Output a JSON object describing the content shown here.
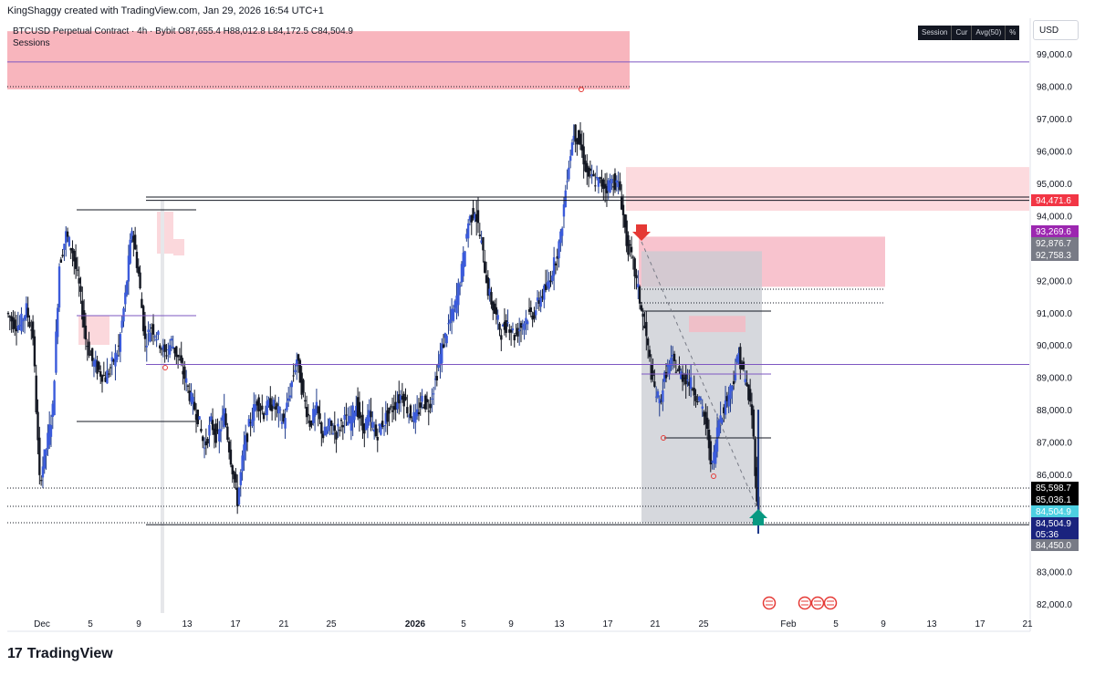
{
  "header": {
    "author_line": "KingShaggy created with TradingView.com, Jan 29, 2026 16:54 UTC+1"
  },
  "pane": {
    "symbol_line": "BTCUSD Perpetual Contract · 4h · Bybit  O87,655.4  H88,012.8  L84,172.5  C84,504.9",
    "sessions_label": "Sessions"
  },
  "legend_box": [
    "Session",
    "Cur",
    "Avg(50)",
    "%"
  ],
  "currency": "USD",
  "footer": {
    "brand": "TradingView",
    "logo_mark": "17"
  },
  "chart_data": {
    "type": "candlestick",
    "title": "BTCUSD Perpetual Contract · 4h · Bybit",
    "ohlc_last": {
      "open": 87655.4,
      "high": 88012.8,
      "low": 84172.5,
      "close": 84504.9
    },
    "ylim": [
      81700,
      99900
    ],
    "y_ticks": [
      99000,
      98000,
      97000,
      96000,
      95000,
      94000,
      92000,
      91000,
      90000,
      89000,
      88000,
      87000,
      86000,
      83000,
      82000
    ],
    "x_labels": [
      "Dec",
      "5",
      "9",
      "13",
      "17",
      "21",
      "25",
      "2026",
      "5",
      "9",
      "13",
      "17",
      "21",
      "25",
      "Feb",
      "5",
      "9",
      "13",
      "17",
      "21"
    ],
    "price_series_days": [
      1,
      2,
      3,
      4,
      5,
      6,
      7,
      8,
      9,
      10,
      11,
      12,
      13,
      14,
      15,
      16,
      17,
      18,
      19,
      20,
      21,
      22,
      23,
      24,
      25,
      26,
      27,
      28,
      29,
      30,
      31,
      32,
      33,
      34,
      35,
      36,
      37,
      38,
      39,
      40,
      41,
      42,
      43,
      44,
      45,
      46,
      47,
      48,
      49,
      50,
      51,
      52,
      53,
      54,
      55,
      56,
      57,
      58,
      59,
      60
    ],
    "close_path": [
      {
        "d": 0.0,
        "v": 91000
      },
      {
        "d": 0.5,
        "v": 90700
      },
      {
        "d": 1.0,
        "v": 90600
      },
      {
        "d": 1.5,
        "v": 91100
      },
      {
        "d": 2.0,
        "v": 90300
      },
      {
        "d": 2.5,
        "v": 85800
      },
      {
        "d": 3.0,
        "v": 86800
      },
      {
        "d": 3.5,
        "v": 88000
      },
      {
        "d": 4.0,
        "v": 92500
      },
      {
        "d": 4.5,
        "v": 93400
      },
      {
        "d": 5.0,
        "v": 92900
      },
      {
        "d": 5.5,
        "v": 91800
      },
      {
        "d": 6.0,
        "v": 90200
      },
      {
        "d": 6.5,
        "v": 89500
      },
      {
        "d": 7.0,
        "v": 89200
      },
      {
        "d": 7.5,
        "v": 89000
      },
      {
        "d": 8.0,
        "v": 89400
      },
      {
        "d": 8.5,
        "v": 89900
      },
      {
        "d": 9.0,
        "v": 91500
      },
      {
        "d": 9.5,
        "v": 93600
      },
      {
        "d": 10.0,
        "v": 92200
      },
      {
        "d": 10.5,
        "v": 90100
      },
      {
        "d": 11.0,
        "v": 90600
      },
      {
        "d": 11.5,
        "v": 90200
      },
      {
        "d": 12.0,
        "v": 89700
      },
      {
        "d": 12.5,
        "v": 90100
      },
      {
        "d": 13.0,
        "v": 89600
      },
      {
        "d": 13.5,
        "v": 89000
      },
      {
        "d": 14.0,
        "v": 88300
      },
      {
        "d": 14.5,
        "v": 87800
      },
      {
        "d": 15.0,
        "v": 86800
      },
      {
        "d": 15.5,
        "v": 87600
      },
      {
        "d": 16.0,
        "v": 87100
      },
      {
        "d": 16.5,
        "v": 87900
      },
      {
        "d": 17.0,
        "v": 86500
      },
      {
        "d": 17.5,
        "v": 85200
      },
      {
        "d": 18.0,
        "v": 86800
      },
      {
        "d": 18.5,
        "v": 87700
      },
      {
        "d": 19.0,
        "v": 88300
      },
      {
        "d": 19.5,
        "v": 87900
      },
      {
        "d": 20.0,
        "v": 88200
      },
      {
        "d": 20.5,
        "v": 88000
      },
      {
        "d": 21.0,
        "v": 87600
      },
      {
        "d": 21.5,
        "v": 88600
      },
      {
        "d": 22.0,
        "v": 89600
      },
      {
        "d": 22.5,
        "v": 88400
      },
      {
        "d": 23.0,
        "v": 87600
      },
      {
        "d": 23.5,
        "v": 88000
      },
      {
        "d": 24.0,
        "v": 87200
      },
      {
        "d": 24.5,
        "v": 87500
      },
      {
        "d": 25.0,
        "v": 87300
      },
      {
        "d": 25.5,
        "v": 87700
      },
      {
        "d": 26.0,
        "v": 87600
      },
      {
        "d": 26.5,
        "v": 88200
      },
      {
        "d": 27.0,
        "v": 87400
      },
      {
        "d": 27.5,
        "v": 87800
      },
      {
        "d": 28.0,
        "v": 87200
      },
      {
        "d": 28.5,
        "v": 87600
      },
      {
        "d": 29.0,
        "v": 87900
      },
      {
        "d": 29.5,
        "v": 88200
      },
      {
        "d": 30.0,
        "v": 88500
      },
      {
        "d": 30.5,
        "v": 87900
      },
      {
        "d": 31.0,
        "v": 87700
      },
      {
        "d": 31.5,
        "v": 88300
      },
      {
        "d": 32.0,
        "v": 88100
      },
      {
        "d": 32.5,
        "v": 88900
      },
      {
        "d": 33.0,
        "v": 89900
      },
      {
        "d": 33.5,
        "v": 90600
      },
      {
        "d": 34.0,
        "v": 91200
      },
      {
        "d": 34.5,
        "v": 92300
      },
      {
        "d": 35.0,
        "v": 93800
      },
      {
        "d": 35.5,
        "v": 94200
      },
      {
        "d": 36.0,
        "v": 93100
      },
      {
        "d": 36.5,
        "v": 91700
      },
      {
        "d": 37.0,
        "v": 91000
      },
      {
        "d": 37.5,
        "v": 90400
      },
      {
        "d": 38.0,
        "v": 90700
      },
      {
        "d": 38.5,
        "v": 90300
      },
      {
        "d": 39.0,
        "v": 90600
      },
      {
        "d": 39.5,
        "v": 90900
      },
      {
        "d": 40.0,
        "v": 91000
      },
      {
        "d": 40.5,
        "v": 91500
      },
      {
        "d": 41.0,
        "v": 91800
      },
      {
        "d": 41.5,
        "v": 92500
      },
      {
        "d": 42.0,
        "v": 93300
      },
      {
        "d": 42.5,
        "v": 95300
      },
      {
        "d": 43.0,
        "v": 96600
      },
      {
        "d": 43.5,
        "v": 96200
      },
      {
        "d": 44.0,
        "v": 95300
      },
      {
        "d": 44.5,
        "v": 95100
      },
      {
        "d": 45.0,
        "v": 95000
      },
      {
        "d": 45.5,
        "v": 94900
      },
      {
        "d": 46.0,
        "v": 95100
      },
      {
        "d": 46.5,
        "v": 94800
      },
      {
        "d": 47.0,
        "v": 93200
      },
      {
        "d": 47.5,
        "v": 92500
      },
      {
        "d": 48.0,
        "v": 91400
      },
      {
        "d": 48.5,
        "v": 90200
      },
      {
        "d": 49.0,
        "v": 88800
      },
      {
        "d": 49.5,
        "v": 88200
      },
      {
        "d": 50.0,
        "v": 89200
      },
      {
        "d": 50.5,
        "v": 89500
      },
      {
        "d": 51.0,
        "v": 89100
      },
      {
        "d": 51.5,
        "v": 89000
      },
      {
        "d": 52.0,
        "v": 88700
      },
      {
        "d": 52.5,
        "v": 88300
      },
      {
        "d": 53.0,
        "v": 87600
      },
      {
        "d": 53.5,
        "v": 86200
      },
      {
        "d": 54.0,
        "v": 87700
      },
      {
        "d": 54.5,
        "v": 88200
      },
      {
        "d": 55.0,
        "v": 88800
      },
      {
        "d": 55.5,
        "v": 89700
      },
      {
        "d": 56.0,
        "v": 88900
      },
      {
        "d": 56.5,
        "v": 87900
      },
      {
        "d": 57.0,
        "v": 84505
      }
    ],
    "horizontal_lines": [
      {
        "price": 98750,
        "color": "#7e57c2"
      },
      {
        "price": 94471.6,
        "color": "#131722"
      },
      {
        "price": 89400,
        "color": "#7e57c2"
      },
      {
        "price": 84450,
        "color": "#131722"
      }
    ],
    "price_labels": [
      {
        "price": 94471.6,
        "text": "94,471.6",
        "bg": "#f23645"
      },
      {
        "price": 93269.6,
        "text": "93,269.6",
        "bg": "#9c27b0"
      },
      {
        "price": 92876.7,
        "text": "92,876.7",
        "bg": "#787b86"
      },
      {
        "price": 92758.3,
        "text": "92,758.3",
        "bg": "#787b86"
      },
      {
        "price": 85598.7,
        "text": "85,598.7",
        "bg": "#000000"
      },
      {
        "price": 85036.1,
        "text": "85,036.1",
        "bg": "#000000"
      },
      {
        "price": 84504.9,
        "text": "84,504.9",
        "bg": "#4dd0e1"
      },
      {
        "price": 84504.9,
        "text": "84,504.9",
        "bg": "#1a237e",
        "sub": "05:36"
      },
      {
        "price": 84450,
        "text": "84,450.0",
        "bg": "#787b86"
      }
    ],
    "zones": [
      {
        "name": "top-session-supply",
        "p_top": 99700,
        "p_bottom": 97900,
        "color": "#f7a8b1"
      },
      {
        "name": "right-supply",
        "p_top": 95500,
        "p_bottom": 94150,
        "color": "#fbd4d8"
      },
      {
        "name": "order-block",
        "p_top": 93350,
        "p_bottom": 91800,
        "color": "#f7b9c5"
      },
      {
        "name": "short-position-range",
        "p_top": 92900,
        "p_bottom": 84500,
        "color": "#c8cbd1"
      }
    ]
  }
}
